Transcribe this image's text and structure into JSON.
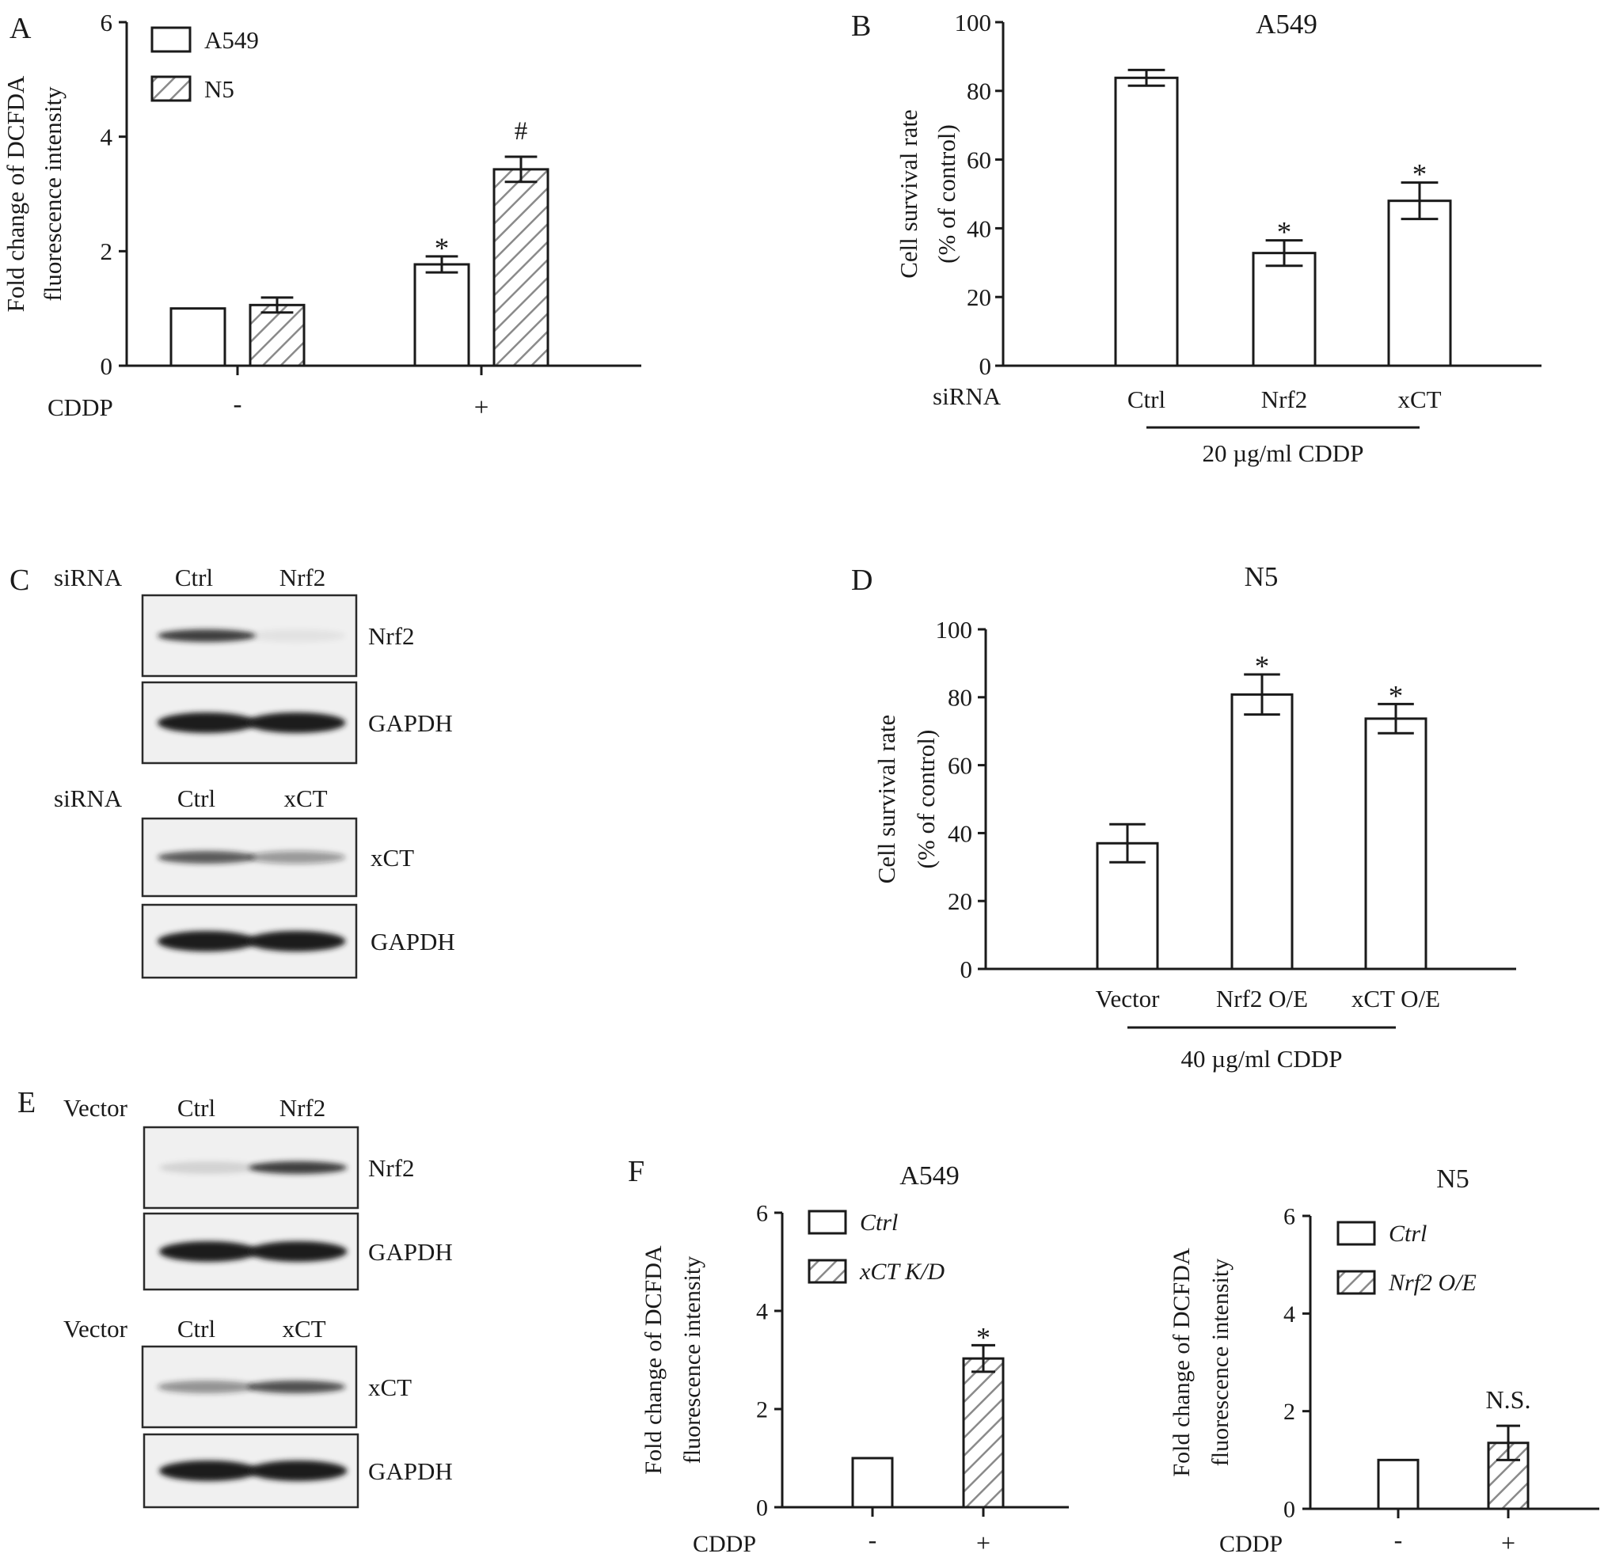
{
  "colors": {
    "ink": "#1a1a1a",
    "hatch": "#8a8a8a",
    "bar_fill": "#ffffff",
    "band": "#1e1e1e"
  },
  "chart_data": [
    {
      "panel": "A",
      "type": "bar",
      "title": "",
      "xlabel": "CDDP",
      "ylabel": "Fold change of DCFDA fluorescence intensity",
      "ylabel_lines": [
        "Fold change of DCFDA",
        "fluorescence intensity"
      ],
      "ylim": [
        0,
        6
      ],
      "yticks": [
        "0",
        "2",
        "4",
        "6"
      ],
      "categories": [
        "-",
        "+"
      ],
      "series": [
        {
          "name": "A549",
          "values": [
            1.0,
            1.77
          ],
          "errors": [
            0,
            0.14
          ],
          "fill": "plain",
          "annotations": [
            "",
            "*"
          ]
        },
        {
          "name": "N5",
          "values": [
            1.06,
            3.43
          ],
          "errors": [
            0.13,
            0.22
          ],
          "fill": "hatch",
          "annotations": [
            "",
            "#"
          ]
        }
      ],
      "legend": "top-left",
      "grid": false
    },
    {
      "panel": "B",
      "type": "bar",
      "title": "A549",
      "ylabel_lines": [
        "Cell survival rate",
        "(% of control)"
      ],
      "row_label": "siRNA",
      "group_label": "20 µg/ml  CDDP",
      "ylim": [
        0,
        100
      ],
      "yticks": [
        "0",
        "20",
        "40",
        "60",
        "80",
        "100"
      ],
      "categories": [
        "Ctrl",
        "Nrf2",
        "xCT"
      ],
      "series": [
        {
          "values": [
            83.8,
            32.8,
            48.0
          ],
          "errors": [
            2.3,
            3.7,
            5.3
          ],
          "fill": "plain",
          "annotations": [
            "",
            "*",
            "*"
          ]
        }
      ],
      "grid": false
    },
    {
      "panel": "D",
      "type": "bar",
      "title": "N5",
      "ylabel_lines": [
        "Cell survival rate",
        "(% of control)"
      ],
      "group_label": "40 µg/ml  CDDP",
      "ylim": [
        0,
        100
      ],
      "yticks": [
        "0",
        "20",
        "40",
        "60",
        "80",
        "100"
      ],
      "categories": [
        "Vector",
        "Nrf2 O/E",
        "xCT O/E"
      ],
      "series": [
        {
          "values": [
            37.0,
            80.8,
            73.7
          ],
          "errors": [
            5.6,
            5.9,
            4.3
          ],
          "fill": "plain",
          "annotations": [
            "",
            "*",
            "*"
          ]
        }
      ],
      "grid": false
    },
    {
      "panel": "F",
      "type": "bar",
      "title": "A549",
      "xlabel": "CDDP",
      "ylabel_lines": [
        "Fold change of DCFDA",
        "fluorescence intensity"
      ],
      "ylim": [
        0,
        6
      ],
      "yticks": [
        "0",
        "2",
        "4",
        "6"
      ],
      "categories": [
        "-",
        "+"
      ],
      "series": [
        {
          "name": "Ctrl",
          "values": [
            1.0,
            null
          ],
          "errors": [
            0,
            0
          ],
          "fill": "plain",
          "annotations": [
            "",
            ""
          ]
        },
        {
          "name": "xCT K/D",
          "values": [
            null,
            3.03
          ],
          "errors": [
            0,
            0.27
          ],
          "fill": "hatch",
          "annotations": [
            "",
            "*"
          ]
        }
      ],
      "legend": "top-left",
      "grid": false
    },
    {
      "panel": "",
      "type": "bar",
      "title": "N5",
      "xlabel": "CDDP",
      "ylabel_lines": [
        "Fold change of DCFDA",
        "fluorescence intensity"
      ],
      "ylim": [
        0,
        6
      ],
      "yticks": [
        "0",
        "2",
        "4",
        "6"
      ],
      "categories": [
        "-",
        "+"
      ],
      "series": [
        {
          "name": "Ctrl",
          "values": [
            1.0,
            null
          ],
          "errors": [
            0,
            0
          ],
          "fill": "plain",
          "annotations": [
            "",
            ""
          ]
        },
        {
          "name": "Nrf2 O/E",
          "values": [
            null,
            1.35
          ],
          "errors": [
            0,
            0.35
          ],
          "fill": "hatch",
          "annotations": [
            "",
            "N.S."
          ]
        }
      ],
      "legend": "top-left",
      "grid": false
    }
  ],
  "blots": [
    {
      "panel": "C",
      "groups": [
        {
          "row_label": "siRNA",
          "lanes": [
            "Ctrl",
            "Nrf2"
          ],
          "bands": [
            {
              "label": "Nrf2",
              "intensity": [
                0.85,
                0.06
              ]
            },
            {
              "label": "GAPDH",
              "intensity": [
                1.0,
                1.0
              ]
            }
          ]
        },
        {
          "row_label": "siRNA",
          "lanes": [
            "Ctrl",
            "xCT"
          ],
          "bands": [
            {
              "label": "xCT",
              "intensity": [
                0.7,
                0.4
              ]
            },
            {
              "label": "GAPDH",
              "intensity": [
                1.0,
                1.0
              ]
            }
          ]
        }
      ]
    },
    {
      "panel": "E",
      "groups": [
        {
          "row_label": "Vector",
          "lanes": [
            "Ctrl",
            "Nrf2"
          ],
          "bands": [
            {
              "label": "Nrf2",
              "intensity": [
                0.12,
                0.85
              ]
            },
            {
              "label": "GAPDH",
              "intensity": [
                1.0,
                1.0
              ]
            }
          ]
        },
        {
          "row_label": "Vector",
          "lanes": [
            "Ctrl",
            "xCT"
          ],
          "bands": [
            {
              "label": "xCT",
              "intensity": [
                0.45,
                0.75
              ]
            },
            {
              "label": "GAPDH",
              "intensity": [
                1.0,
                1.0
              ]
            }
          ]
        }
      ]
    }
  ]
}
